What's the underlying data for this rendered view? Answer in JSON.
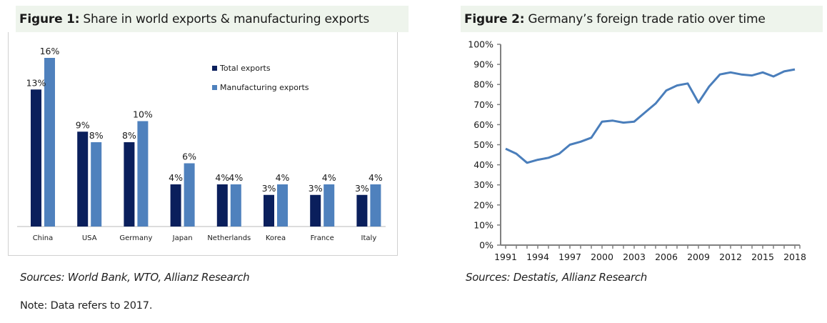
{
  "figure1": {
    "label": "Figure 1:",
    "title": "Share in world exports & manufacturing exports",
    "source": "Sources: World Bank, WTO, Allianz Research",
    "note": "Note: Data refers to 2017."
  },
  "figure2": {
    "label": "Figure 2:",
    "title": "Germany’s foreign trade ratio over time",
    "source": "Sources: Destatis, Allianz Research"
  },
  "colors": {
    "total_exports": "#0a1f5c",
    "manufacturing_exports": "#4f81bd",
    "line": "#4a7ebb",
    "axis": "#808080",
    "title_band": "#eef4ec"
  },
  "chart_data": [
    {
      "type": "bar",
      "title": "Share in world exports & manufacturing exports",
      "categories": [
        "China",
        "USA",
        "Germany",
        "Japan",
        "Netherlands",
        "Korea",
        "France",
        "Italy"
      ],
      "series": [
        {
          "name": "Total exports",
          "values": [
            13,
            9,
            8,
            4,
            4,
            3,
            3,
            3
          ],
          "labels": [
            "13%",
            "9%",
            "8%",
            "4%",
            "4%",
            "3%",
            "3%",
            "3%"
          ]
        },
        {
          "name": "Manufacturing exports",
          "values": [
            16,
            8,
            10,
            6,
            4,
            4,
            4,
            4
          ],
          "labels": [
            "16%",
            "8%",
            "10%",
            "6%",
            "4%",
            "4%",
            "4%",
            "4%"
          ]
        }
      ],
      "xlabel": "",
      "ylabel": "",
      "ylim": [
        0,
        16
      ],
      "grid": false,
      "legend": "top-right",
      "unit": "%"
    },
    {
      "type": "line",
      "title": "Germany’s foreign trade ratio over time",
      "x": [
        1991,
        1992,
        1993,
        1994,
        1995,
        1996,
        1997,
        1998,
        1999,
        2000,
        2001,
        2002,
        2003,
        2004,
        2005,
        2006,
        2007,
        2008,
        2009,
        2010,
        2011,
        2012,
        2013,
        2014,
        2015,
        2016,
        2017,
        2018
      ],
      "series": [
        {
          "name": "Foreign trade ratio",
          "values": [
            48,
            45.5,
            41,
            42.5,
            43.5,
            45.5,
            50,
            51.5,
            53.5,
            61.5,
            62,
            61,
            61.5,
            66,
            70.5,
            77,
            79.5,
            80.5,
            71,
            79,
            85,
            86,
            85,
            84.5,
            86,
            84,
            86.5,
            87.5
          ]
        }
      ],
      "xticks": [
        "1991",
        "1994",
        "1997",
        "2000",
        "2003",
        "2006",
        "2009",
        "2012",
        "2015",
        "2018"
      ],
      "yticks": [
        "0%",
        "10%",
        "20%",
        "30%",
        "40%",
        "50%",
        "60%",
        "70%",
        "80%",
        "90%",
        "100%"
      ],
      "ylim": [
        0,
        100
      ],
      "xlim": [
        1991,
        2018
      ],
      "xlabel": "",
      "ylabel": "",
      "grid": false,
      "legend": "none"
    }
  ]
}
